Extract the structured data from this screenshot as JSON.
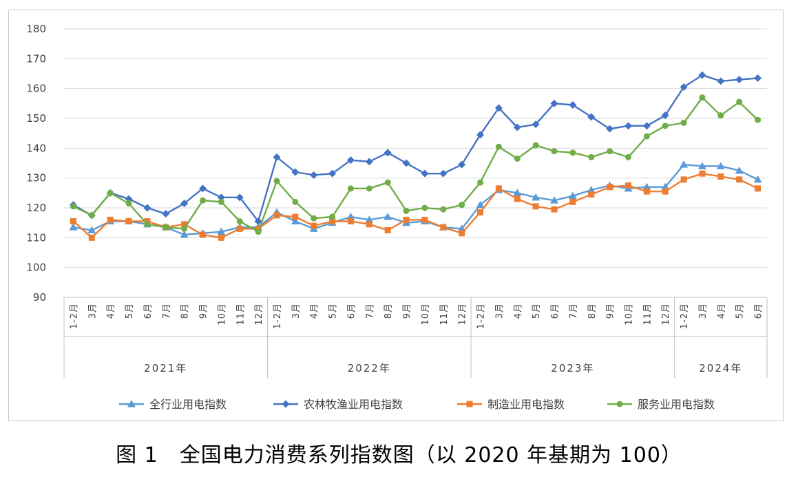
{
  "caption": "图 1　全国电力消费系列指数图（以 2020 年基期为 100）",
  "chart_data": {
    "type": "line",
    "title": "",
    "ylim": [
      90,
      180
    ],
    "yticks": [
      90,
      100,
      110,
      120,
      130,
      140,
      150,
      160,
      170,
      180
    ],
    "grid": true,
    "legend_position": "bottom",
    "groups": [
      {
        "label": "2021年",
        "count": 11
      },
      {
        "label": "2022年",
        "count": 11
      },
      {
        "label": "2023年",
        "count": 11
      },
      {
        "label": "2024年",
        "count": 5
      }
    ],
    "categories": [
      "1-2月",
      "3月",
      "4月",
      "5月",
      "6月",
      "7月",
      "8月",
      "9月",
      "10月",
      "11月",
      "12月",
      "1-2月",
      "3月",
      "4月",
      "5月",
      "6月",
      "7月",
      "8月",
      "9月",
      "10月",
      "11月",
      "12月",
      "1-2月",
      "3月",
      "4月",
      "5月",
      "6月",
      "7月",
      "8月",
      "9月",
      "10月",
      "11月",
      "12月",
      "1-2月",
      "3月",
      "4月",
      "5月",
      "6月"
    ],
    "series": [
      {
        "name": "全行业用电指数",
        "color": "#5B9BD5",
        "marker": "triangle",
        "values": [
          113.5,
          112.5,
          115.5,
          115.5,
          114.5,
          113.5,
          111.0,
          111.5,
          112.0,
          113.5,
          113.5,
          118.5,
          115.5,
          113.0,
          115.0,
          117.0,
          116.0,
          117.0,
          115.0,
          115.5,
          113.5,
          113.0,
          121.0,
          126.0,
          125.0,
          123.5,
          122.5,
          124.0,
          126.0,
          127.5,
          126.5,
          127.0,
          127.0,
          134.5,
          134.0,
          134.0,
          132.5,
          129.5
        ]
      },
      {
        "name": "农林牧渔业用电指数",
        "color": "#4472C4",
        "marker": "diamond",
        "values": [
          121.0,
          117.5,
          125.0,
          123.0,
          120.0,
          118.0,
          121.5,
          126.5,
          123.5,
          123.5,
          115.5,
          137.0,
          132.0,
          131.0,
          131.5,
          136.0,
          135.5,
          138.5,
          135.0,
          131.5,
          131.5,
          134.5,
          144.5,
          153.5,
          147.0,
          148.0,
          155.0,
          154.5,
          150.5,
          146.5,
          147.5,
          147.5,
          151.0,
          160.5,
          164.5,
          162.5,
          163.0,
          163.5
        ]
      },
      {
        "name": "制造业用电指数",
        "color": "#ED7D31",
        "marker": "square",
        "values": [
          115.5,
          110.0,
          116.0,
          115.5,
          115.5,
          113.5,
          114.5,
          111.0,
          110.0,
          113.0,
          113.0,
          117.5,
          117.0,
          114.0,
          115.5,
          115.5,
          114.5,
          112.5,
          116.0,
          116.0,
          113.5,
          111.5,
          118.5,
          126.5,
          123.0,
          120.5,
          119.5,
          122.0,
          124.5,
          127.0,
          127.5,
          125.5,
          125.5,
          129.5,
          131.5,
          130.5,
          129.5,
          126.5
        ]
      },
      {
        "name": "服务业用电指数",
        "color": "#70AD47",
        "marker": "circle",
        "values": [
          120.5,
          117.5,
          125.0,
          121.5,
          114.5,
          113.5,
          113.0,
          122.5,
          122.0,
          115.5,
          112.0,
          129.0,
          122.0,
          116.5,
          117.0,
          126.5,
          126.5,
          128.5,
          119.0,
          120.0,
          119.5,
          121.0,
          128.5,
          140.5,
          136.5,
          141.0,
          139.0,
          138.5,
          137.0,
          139.0,
          137.0,
          144.0,
          147.5,
          148.5,
          157.0,
          151.0,
          155.5,
          149.5
        ]
      }
    ]
  }
}
